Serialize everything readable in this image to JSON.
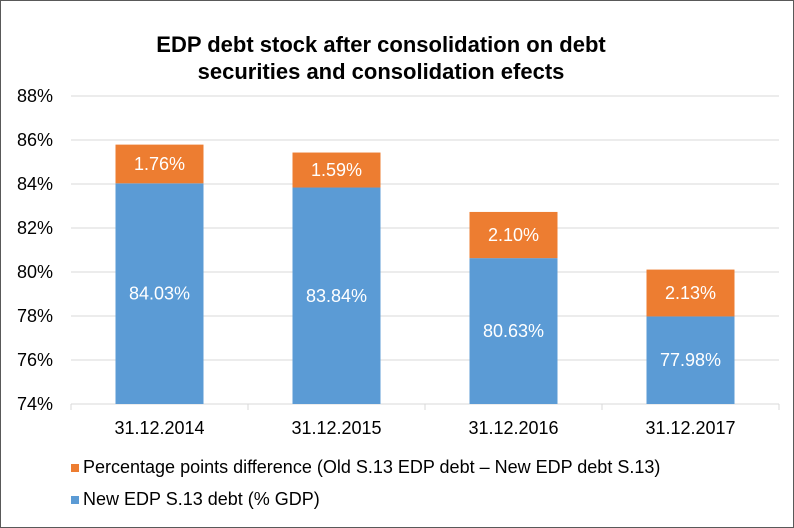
{
  "chart_data": {
    "type": "bar",
    "stacked": true,
    "title": "EDP debt stock after consolidation on debt securities and consolidation efects",
    "title_lines": [
      "EDP debt stock after consolidation on debt",
      "securities and consolidation efects"
    ],
    "categories": [
      "31.12.2014",
      "31.12.2015",
      "31.12.2016",
      "31.12.2017"
    ],
    "series": [
      {
        "name": "New EDP S.13 debt (% GDP)",
        "values": [
          84.03,
          83.84,
          80.63,
          77.98
        ],
        "labels": [
          "84.03%",
          "83.84%",
          "80.63%",
          "77.98%"
        ],
        "color": "#5B9BD5"
      },
      {
        "name": "Percentage points difference (Old S.13 EDP debt – New EDP debt S.13)",
        "values": [
          1.76,
          1.59,
          2.1,
          2.13
        ],
        "labels": [
          "1.76%",
          "1.59%",
          "2.10%",
          "2.13%"
        ],
        "color": "#ED7D31"
      }
    ],
    "ylim": [
      74,
      88
    ],
    "yticks": [
      74,
      76,
      78,
      80,
      82,
      84,
      86,
      88
    ],
    "ytick_labels": [
      "74%",
      "76%",
      "78%",
      "80%",
      "82%",
      "84%",
      "86%",
      "88%"
    ],
    "xlabel": "",
    "ylabel": "",
    "grid": true,
    "legend": {
      "position": "bottom-left",
      "order": [
        "Percentage points difference (Old S.13 EDP debt – New EDP debt S.13)",
        "New EDP S.13 debt (% GDP)"
      ]
    }
  }
}
